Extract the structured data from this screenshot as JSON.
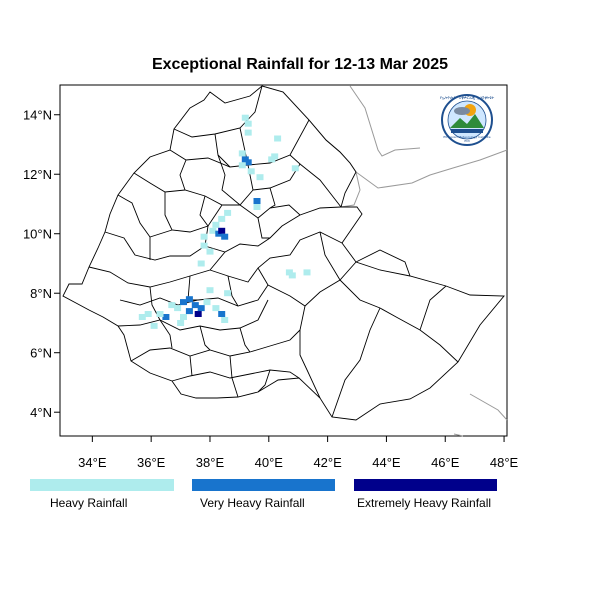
{
  "title": "Exceptional Rainfall for 12-13 Mar 2025",
  "axes": {
    "x_ticks": [
      {
        "value": 34,
        "label": "34°E"
      },
      {
        "value": 36,
        "label": "36°E"
      },
      {
        "value": 38,
        "label": "38°E"
      },
      {
        "value": 40,
        "label": "40°E"
      },
      {
        "value": 42,
        "label": "42°E"
      },
      {
        "value": 44,
        "label": "44°E"
      },
      {
        "value": 46,
        "label": "46°E"
      },
      {
        "value": 48,
        "label": "48°E"
      }
    ],
    "y_ticks": [
      {
        "value": 4,
        "label": "4°N"
      },
      {
        "value": 6,
        "label": "6°N"
      },
      {
        "value": 8,
        "label": "8°N"
      },
      {
        "value": 10,
        "label": "10°N"
      },
      {
        "value": 12,
        "label": "12°N"
      },
      {
        "value": 14,
        "label": "14°N"
      }
    ],
    "lon_range": [
      32.9,
      48.1
    ],
    "lat_range": [
      3.2,
      15.0
    ]
  },
  "colors": {
    "heavy": "#aeeced",
    "very_heavy": "#1874cd",
    "extremely_heavy": "#00008b",
    "light_blue_cells": "#68c7e8",
    "border": "#000000",
    "neighbor_border": "#9a9a9a"
  },
  "legend": [
    {
      "key": "heavy",
      "label": "Heavy Rainfall",
      "color": "#aeeced"
    },
    {
      "key": "very_heavy",
      "label": "Very Heavy Rainfall",
      "color": "#1874cd"
    },
    {
      "key": "extremely_heavy",
      "label": "Extremely Heavy Rainfall",
      "color": "#00008b"
    }
  ],
  "logo": {
    "icon": "ethiopian-meteorology-institute-logo",
    "text_top": "የኢትዮጵያ ሚቲዎሮሎጂ ኢንስቲትዩት",
    "text_bottom": "Ethiopian Meteorology Institute",
    "text_year": "EMI"
  },
  "rain_cells": [
    {
      "lon": 39.2,
      "lat": 13.9,
      "level": "heavy"
    },
    {
      "lon": 39.3,
      "lat": 13.7,
      "level": "heavy"
    },
    {
      "lon": 39.3,
      "lat": 13.4,
      "level": "heavy"
    },
    {
      "lon": 39.1,
      "lat": 12.7,
      "level": "heavy"
    },
    {
      "lon": 39.2,
      "lat": 12.5,
      "level": "very_heavy"
    },
    {
      "lon": 39.3,
      "lat": 12.4,
      "level": "very_heavy"
    },
    {
      "lon": 39.1,
      "lat": 12.3,
      "level": "heavy"
    },
    {
      "lon": 39.4,
      "lat": 12.1,
      "level": "heavy"
    },
    {
      "lon": 40.3,
      "lat": 13.2,
      "level": "heavy"
    },
    {
      "lon": 40.2,
      "lat": 12.6,
      "level": "heavy"
    },
    {
      "lon": 40.1,
      "lat": 12.5,
      "level": "heavy"
    },
    {
      "lon": 40.9,
      "lat": 12.2,
      "level": "heavy"
    },
    {
      "lon": 39.6,
      "lat": 11.1,
      "level": "very_heavy"
    },
    {
      "lon": 39.6,
      "lat": 10.9,
      "level": "heavy"
    },
    {
      "lon": 38.6,
      "lat": 10.7,
      "level": "heavy"
    },
    {
      "lon": 38.4,
      "lat": 10.5,
      "level": "heavy"
    },
    {
      "lon": 38.2,
      "lat": 10.3,
      "level": "heavy"
    },
    {
      "lon": 38.1,
      "lat": 10.1,
      "level": "heavy"
    },
    {
      "lon": 38.3,
      "lat": 10.0,
      "level": "very_heavy"
    },
    {
      "lon": 38.4,
      "lat": 10.1,
      "level": "extremely_heavy"
    },
    {
      "lon": 38.5,
      "lat": 9.9,
      "level": "very_heavy"
    },
    {
      "lon": 37.8,
      "lat": 9.9,
      "level": "heavy"
    },
    {
      "lon": 37.8,
      "lat": 9.6,
      "level": "heavy"
    },
    {
      "lon": 38.0,
      "lat": 9.4,
      "level": "heavy"
    },
    {
      "lon": 36.7,
      "lat": 7.6,
      "level": "heavy"
    },
    {
      "lon": 36.9,
      "lat": 7.5,
      "level": "heavy"
    },
    {
      "lon": 37.1,
      "lat": 7.7,
      "level": "very_heavy"
    },
    {
      "lon": 37.3,
      "lat": 7.8,
      "level": "very_heavy"
    },
    {
      "lon": 37.5,
      "lat": 7.6,
      "level": "very_heavy"
    },
    {
      "lon": 37.3,
      "lat": 7.4,
      "level": "very_heavy"
    },
    {
      "lon": 37.6,
      "lat": 7.3,
      "level": "extremely_heavy"
    },
    {
      "lon": 37.7,
      "lat": 7.5,
      "level": "very_heavy"
    },
    {
      "lon": 37.9,
      "lat": 7.7,
      "level": "heavy"
    },
    {
      "lon": 37.1,
      "lat": 7.2,
      "level": "heavy"
    },
    {
      "lon": 36.5,
      "lat": 7.2,
      "level": "very_heavy"
    },
    {
      "lon": 36.3,
      "lat": 7.3,
      "level": "heavy"
    },
    {
      "lon": 35.9,
      "lat": 7.3,
      "level": "heavy"
    },
    {
      "lon": 35.7,
      "lat": 7.2,
      "level": "heavy"
    },
    {
      "lon": 37.0,
      "lat": 7.0,
      "level": "heavy"
    },
    {
      "lon": 38.2,
      "lat": 7.5,
      "level": "heavy"
    },
    {
      "lon": 38.4,
      "lat": 7.3,
      "level": "very_heavy"
    },
    {
      "lon": 38.5,
      "lat": 7.1,
      "level": "heavy"
    },
    {
      "lon": 38.0,
      "lat": 8.1,
      "level": "heavy"
    },
    {
      "lon": 38.6,
      "lat": 8.0,
      "level": "heavy"
    },
    {
      "lon": 40.7,
      "lat": 8.7,
      "level": "heavy"
    },
    {
      "lon": 40.8,
      "lat": 8.6,
      "level": "heavy"
    },
    {
      "lon": 41.3,
      "lat": 8.7,
      "level": "heavy"
    },
    {
      "lon": 36.1,
      "lat": 6.9,
      "level": "heavy"
    },
    {
      "lon": 37.7,
      "lat": 9.0,
      "level": "heavy"
    },
    {
      "lon": 39.7,
      "lat": 11.9,
      "level": "heavy"
    }
  ]
}
